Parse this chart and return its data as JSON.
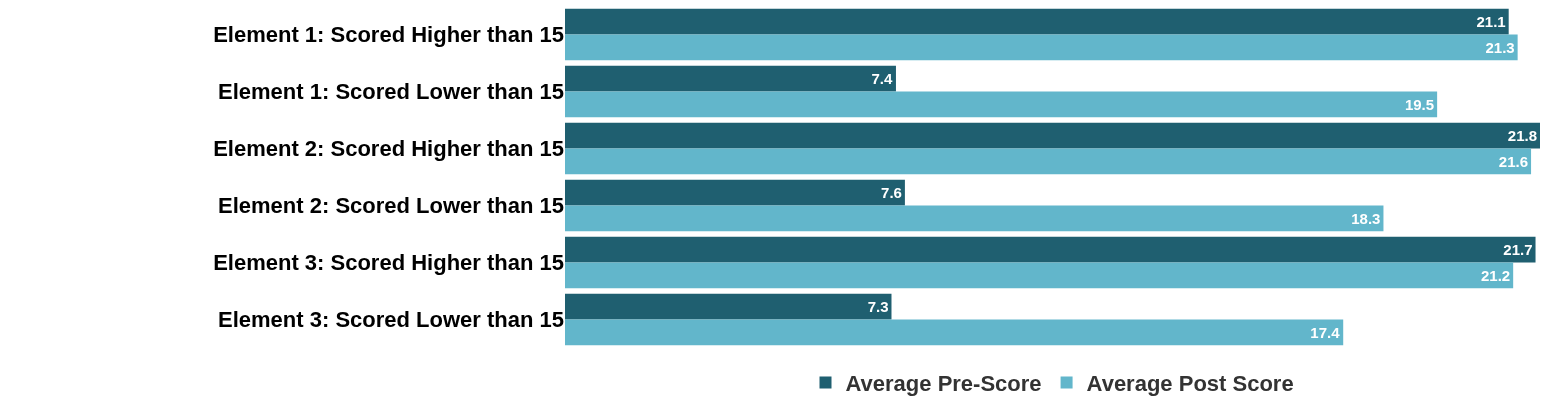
{
  "chart_data": {
    "type": "bar",
    "orientation": "horizontal",
    "categories": [
      "Element 1: Scored Higher than 15",
      "Element 1: Scored Lower than 15",
      "Element 2: Scored Higher than 15",
      "Element 2: Scored Lower than 15",
      "Element 3: Scored Higher than 15",
      "Element 3: Scored Lower than 15"
    ],
    "series": [
      {
        "name": "Average Pre-Score",
        "color": "#1f5f70",
        "values": [
          21.1,
          7.4,
          21.8,
          7.6,
          21.7,
          7.3
        ]
      },
      {
        "name": "Average Post Score",
        "color": "#62b6cb",
        "values": [
          21.3,
          19.5,
          21.6,
          18.3,
          21.2,
          17.4
        ]
      }
    ],
    "data_labels": true,
    "tick_labels": "y",
    "legend": "bottom"
  }
}
